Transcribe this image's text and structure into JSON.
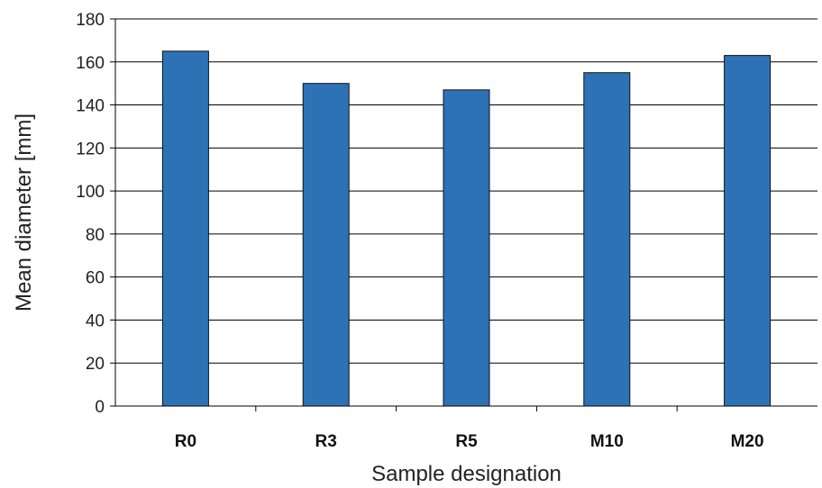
{
  "chart_data": {
    "type": "bar",
    "title": "",
    "xlabel": "Sample designation",
    "ylabel": "Mean diameter [mm]",
    "categories": [
      "R0",
      "R3",
      "R5",
      "M10",
      "M20"
    ],
    "values": [
      165,
      150,
      147,
      155,
      163
    ],
    "ylim": [
      0,
      180
    ],
    "yticks": [
      "0",
      "20",
      "40",
      "60",
      "80",
      "100",
      "120",
      "140",
      "160",
      "180"
    ],
    "grid": true,
    "legend": "none",
    "colors": {
      "bar": "#2e72b6",
      "bar_edge": "#111111",
      "grid": "#000000"
    }
  }
}
